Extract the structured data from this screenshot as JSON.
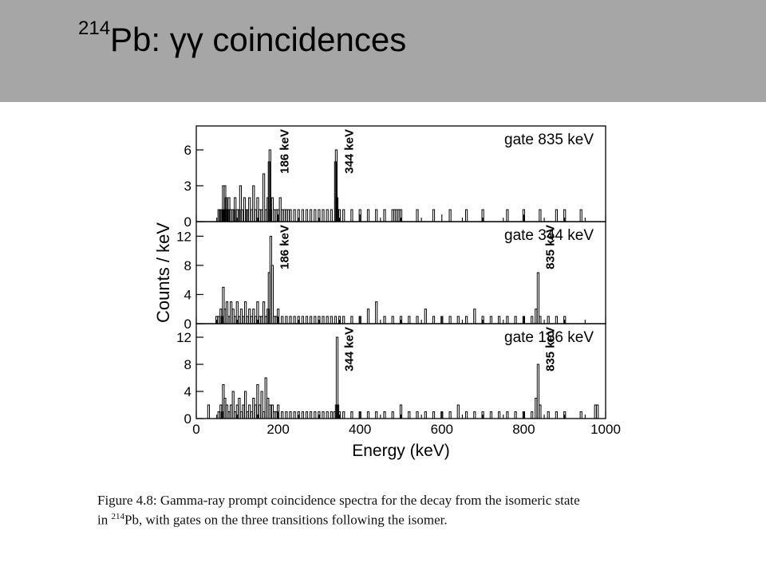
{
  "slide": {
    "title_sup": "214",
    "title_main": "Pb: γγ coincidences",
    "header_color": "#a6a6a6"
  },
  "caption": {
    "line1": "Figure 4.8: Gamma-ray prompt coincidence spectra for the decay from the isomeric state",
    "line2_pre": "in ",
    "line2_sup": "214",
    "line2_post": "Pb, with gates on the three transitions following the isomer."
  },
  "chart_data": [
    {
      "type": "bar",
      "title": "gate 835 keV",
      "ylabel": "Counts / keV",
      "xlim": [
        0,
        1000
      ],
      "ylim": [
        0,
        8
      ],
      "yticks": [
        0,
        3,
        6
      ],
      "peak_labels": [
        {
          "x": 186,
          "text": "186 keV"
        },
        {
          "x": 344,
          "text": "344 keV"
        }
      ],
      "x": [
        55,
        58,
        62,
        65,
        66,
        68,
        70,
        73,
        75,
        78,
        80,
        84,
        88,
        92,
        95,
        100,
        105,
        108,
        112,
        118,
        122,
        125,
        130,
        135,
        140,
        145,
        150,
        155,
        160,
        165,
        170,
        175,
        178,
        180,
        182,
        186,
        190,
        195,
        200,
        205,
        210,
        215,
        220,
        225,
        230,
        240,
        250,
        260,
        270,
        280,
        290,
        300,
        310,
        320,
        330,
        340,
        342,
        344,
        346,
        350,
        360,
        380,
        400,
        420,
        440,
        460,
        480,
        485,
        490,
        495,
        500,
        540,
        580,
        620,
        660,
        700,
        760,
        800,
        840,
        880,
        900,
        940
      ],
      "values": [
        1,
        1,
        1,
        1,
        3,
        1,
        3,
        2,
        1,
        1,
        2,
        1,
        1,
        1,
        2,
        1,
        1,
        3,
        1,
        2,
        1,
        1,
        2,
        1,
        3,
        1,
        2,
        1,
        1,
        4,
        1,
        2,
        5,
        6,
        1,
        2,
        1,
        1,
        1,
        2,
        1,
        1,
        1,
        1,
        1,
        1,
        1,
        1,
        1,
        1,
        1,
        1,
        1,
        1,
        1,
        5,
        6,
        2,
        1,
        1,
        1,
        1,
        1,
        1,
        1,
        1,
        1,
        1,
        1,
        1,
        1,
        1,
        1,
        1,
        1,
        1,
        1,
        1,
        1,
        1,
        1,
        1
      ]
    },
    {
      "type": "bar",
      "title": "gate 344 keV",
      "ylabel": "Counts / keV",
      "xlim": [
        0,
        1000
      ],
      "ylim": [
        0,
        14
      ],
      "yticks": [
        0,
        4,
        8,
        12
      ],
      "peak_labels": [
        {
          "x": 186,
          "text": "186 keV"
        },
        {
          "x": 835,
          "text": "835 keV"
        }
      ],
      "x": [
        50,
        55,
        60,
        63,
        66,
        70,
        75,
        80,
        85,
        90,
        95,
        100,
        105,
        110,
        115,
        120,
        125,
        130,
        135,
        140,
        145,
        150,
        155,
        160,
        165,
        170,
        175,
        178,
        182,
        186,
        190,
        195,
        200,
        210,
        220,
        230,
        240,
        250,
        260,
        270,
        280,
        290,
        300,
        310,
        320,
        330,
        340,
        350,
        360,
        380,
        400,
        420,
        440,
        460,
        480,
        500,
        520,
        540,
        560,
        580,
        600,
        620,
        640,
        660,
        680,
        700,
        720,
        740,
        760,
        780,
        800,
        820,
        830,
        835,
        840,
        860,
        880,
        900
      ],
      "values": [
        1,
        1,
        2,
        1,
        5,
        2,
        3,
        1,
        3,
        2,
        1,
        3,
        1,
        2,
        1,
        3,
        1,
        2,
        1,
        2,
        1,
        3,
        1,
        1,
        3,
        1,
        2,
        7,
        12,
        8,
        1,
        1,
        2,
        1,
        1,
        1,
        1,
        1,
        1,
        1,
        1,
        1,
        1,
        1,
        1,
        1,
        1,
        1,
        1,
        1,
        1,
        2,
        3,
        1,
        1,
        1,
        1,
        1,
        2,
        1,
        1,
        1,
        1,
        1,
        2,
        1,
        1,
        1,
        1,
        1,
        1,
        1,
        2,
        7,
        1,
        1,
        1,
        1
      ]
    },
    {
      "type": "bar",
      "title": "gate 186 keV",
      "xlabel": "Energy (keV)",
      "xlim": [
        0,
        1000
      ],
      "ylim": [
        0,
        14
      ],
      "xticks": [
        0,
        200,
        400,
        600,
        800,
        1000
      ],
      "yticks": [
        0,
        4,
        8,
        12
      ],
      "peak_labels": [
        {
          "x": 344,
          "text": "344 keV"
        },
        {
          "x": 835,
          "text": "835 keV"
        }
      ],
      "x": [
        30,
        55,
        60,
        63,
        66,
        70,
        75,
        80,
        85,
        90,
        95,
        100,
        105,
        110,
        115,
        120,
        125,
        130,
        135,
        140,
        145,
        150,
        155,
        160,
        165,
        170,
        175,
        180,
        186,
        190,
        195,
        200,
        210,
        220,
        230,
        240,
        250,
        260,
        270,
        280,
        290,
        300,
        310,
        320,
        330,
        338,
        342,
        344,
        346,
        350,
        360,
        380,
        400,
        420,
        440,
        460,
        480,
        500,
        520,
        540,
        560,
        580,
        600,
        620,
        640,
        660,
        680,
        700,
        720,
        740,
        760,
        780,
        800,
        820,
        830,
        835,
        840,
        860,
        880,
        900,
        940,
        975,
        980
      ],
      "values": [
        2,
        1,
        2,
        1,
        5,
        3,
        2,
        1,
        2,
        4,
        1,
        2,
        3,
        1,
        2,
        4,
        1,
        2,
        1,
        3,
        2,
        5,
        2,
        4,
        1,
        6,
        3,
        2,
        2,
        1,
        1,
        2,
        1,
        1,
        1,
        1,
        1,
        1,
        1,
        1,
        1,
        1,
        1,
        1,
        1,
        1,
        2,
        12,
        2,
        1,
        1,
        1,
        1,
        1,
        1,
        1,
        1,
        2,
        1,
        1,
        1,
        1,
        1,
        1,
        2,
        1,
        1,
        1,
        1,
        1,
        1,
        1,
        1,
        1,
        3,
        8,
        2,
        1,
        1,
        1,
        1,
        2,
        2
      ]
    }
  ]
}
